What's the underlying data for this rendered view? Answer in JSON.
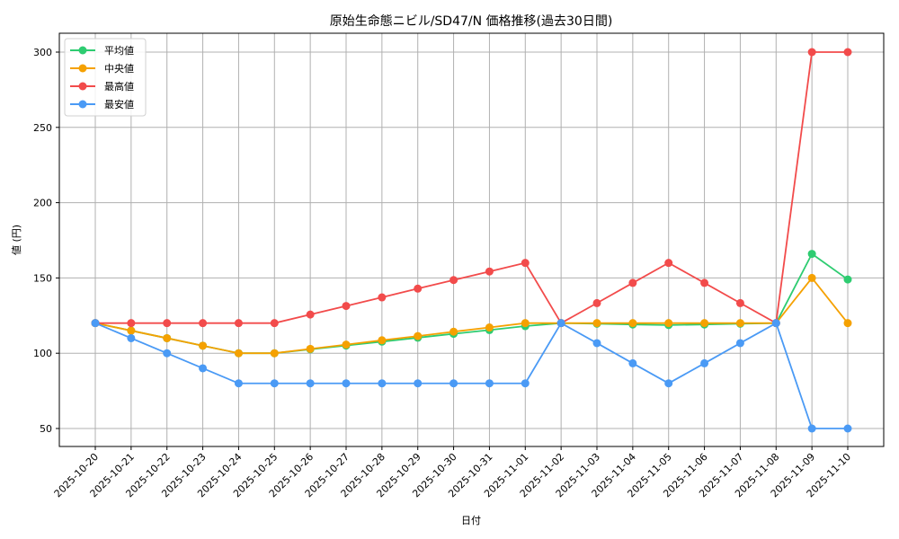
{
  "chart_data": {
    "type": "line",
    "title": "原始生命態ニビル/SD47/N 価格推移(過去30日間)",
    "xlabel": "日付",
    "ylabel": "値 (円)",
    "ylim": [
      37,
      312
    ],
    "yticks": [
      50,
      100,
      150,
      200,
      250,
      300
    ],
    "grid": true,
    "legend_position": "upper left",
    "categories": [
      "2025-10-20",
      "2025-10-21",
      "2025-10-22",
      "2025-10-23",
      "2025-10-24",
      "2025-10-25",
      "2025-10-26",
      "2025-10-27",
      "2025-10-28",
      "2025-10-29",
      "2025-10-30",
      "2025-10-31",
      "2025-11-01",
      "2025-11-02",
      "2025-11-03",
      "2025-11-04",
      "2025-11-05",
      "2025-11-06",
      "2025-11-07",
      "2025-11-08",
      "2025-11-09",
      "2025-11-10"
    ],
    "series": [
      {
        "name": "平均値",
        "color": "#2ecc71",
        "values": [
          120,
          115,
          110,
          105,
          100,
          100,
          102.6,
          105.1,
          107.7,
          110.3,
          112.9,
          115.4,
          118,
          120,
          119.6,
          119.1,
          118.7,
          119.1,
          119.6,
          120,
          166,
          149
        ]
      },
      {
        "name": "中央値",
        "color": "#f5a100",
        "values": [
          120,
          115,
          110,
          105,
          100,
          100,
          102.9,
          105.7,
          108.6,
          111.4,
          114.3,
          117.1,
          120,
          120,
          120,
          120,
          120,
          120,
          120,
          120,
          150,
          120
        ]
      },
      {
        "name": "最高値",
        "color": "#f24b4b",
        "values": [
          120,
          120,
          120,
          120,
          120,
          120,
          125.7,
          131.4,
          137.1,
          142.9,
          148.6,
          154.3,
          160,
          120,
          133.3,
          146.7,
          160,
          146.7,
          133.3,
          120,
          300,
          300
        ]
      },
      {
        "name": "最安値",
        "color": "#4a9af5",
        "values": [
          120,
          110,
          100,
          90,
          80,
          80,
          80,
          80,
          80,
          80,
          80,
          80,
          80,
          120,
          106.7,
          93.3,
          80,
          93.3,
          106.7,
          120,
          50,
          50
        ]
      }
    ]
  }
}
